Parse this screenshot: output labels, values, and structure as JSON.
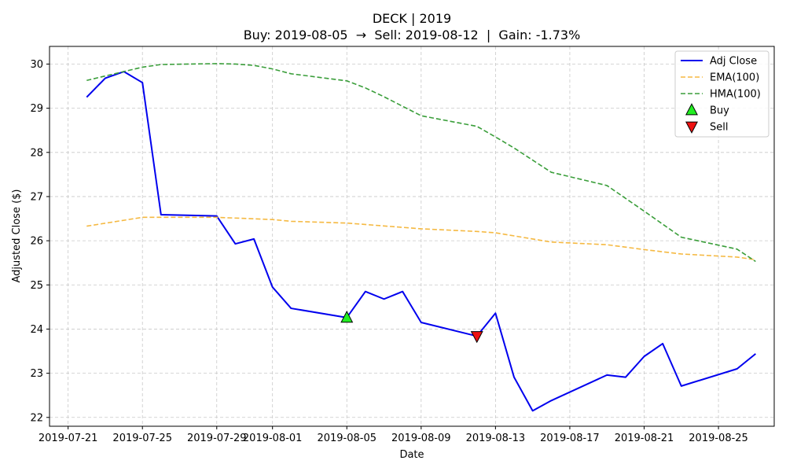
{
  "chart_data": {
    "type": "line",
    "title_line1": "DECK | 2019",
    "title_line2": "Buy: 2019-08-05  →  Sell: 2019-08-12  |  Gain: -1.73%",
    "xlabel": "Date",
    "ylabel": "Adjusted Close ($)",
    "grid": true,
    "legend_position": "top-right",
    "xlim": [
      "2019-07-20",
      "2019-08-28"
    ],
    "ylim": [
      21.8,
      30.4
    ],
    "x_ticks": [
      "2019-07-21",
      "2019-07-25",
      "2019-07-29",
      "2019-08-01",
      "2019-08-05",
      "2019-08-09",
      "2019-08-13",
      "2019-08-17",
      "2019-08-21",
      "2019-08-25"
    ],
    "y_ticks": [
      22,
      23,
      24,
      25,
      26,
      27,
      28,
      29,
      30
    ],
    "series": [
      {
        "name": "Adj Close",
        "color": "#0000ee",
        "style": "solid",
        "points": [
          {
            "x": "2019-07-22",
            "y": 29.25
          },
          {
            "x": "2019-07-23",
            "y": 29.68
          },
          {
            "x": "2019-07-24",
            "y": 29.83
          },
          {
            "x": "2019-07-25",
            "y": 29.58
          },
          {
            "x": "2019-07-26",
            "y": 26.59
          },
          {
            "x": "2019-07-29",
            "y": 26.56
          },
          {
            "x": "2019-07-30",
            "y": 25.93
          },
          {
            "x": "2019-07-31",
            "y": 26.04
          },
          {
            "x": "2019-08-01",
            "y": 24.95
          },
          {
            "x": "2019-08-02",
            "y": 24.47
          },
          {
            "x": "2019-08-05",
            "y": 24.26
          },
          {
            "x": "2019-08-06",
            "y": 24.85
          },
          {
            "x": "2019-08-07",
            "y": 24.68
          },
          {
            "x": "2019-08-08",
            "y": 24.85
          },
          {
            "x": "2019-08-09",
            "y": 24.15
          },
          {
            "x": "2019-08-12",
            "y": 23.84
          },
          {
            "x": "2019-08-13",
            "y": 24.36
          },
          {
            "x": "2019-08-14",
            "y": 22.91
          },
          {
            "x": "2019-08-15",
            "y": 22.15
          },
          {
            "x": "2019-08-16",
            "y": 22.38
          },
          {
            "x": "2019-08-19",
            "y": 22.96
          },
          {
            "x": "2019-08-20",
            "y": 22.91
          },
          {
            "x": "2019-08-21",
            "y": 23.38
          },
          {
            "x": "2019-08-22",
            "y": 23.67
          },
          {
            "x": "2019-08-23",
            "y": 22.71
          },
          {
            "x": "2019-08-26",
            "y": 23.1
          },
          {
            "x": "2019-08-27",
            "y": 23.44
          }
        ]
      },
      {
        "name": "EMA(100)",
        "color": "#f5b942",
        "style": "dashed",
        "points": [
          {
            "x": "2019-07-22",
            "y": 26.33
          },
          {
            "x": "2019-07-25",
            "y": 26.53
          },
          {
            "x": "2019-07-29",
            "y": 26.53
          },
          {
            "x": "2019-08-01",
            "y": 26.48
          },
          {
            "x": "2019-08-02",
            "y": 26.44
          },
          {
            "x": "2019-08-05",
            "y": 26.4
          },
          {
            "x": "2019-08-09",
            "y": 26.27
          },
          {
            "x": "2019-08-12",
            "y": 26.21
          },
          {
            "x": "2019-08-13",
            "y": 26.18
          },
          {
            "x": "2019-08-16",
            "y": 25.97
          },
          {
            "x": "2019-08-19",
            "y": 25.91
          },
          {
            "x": "2019-08-21",
            "y": 25.8
          },
          {
            "x": "2019-08-23",
            "y": 25.7
          },
          {
            "x": "2019-08-26",
            "y": 25.63
          },
          {
            "x": "2019-08-27",
            "y": 25.57
          }
        ]
      },
      {
        "name": "HMA(100)",
        "color": "#3a9e3a",
        "style": "dashed",
        "points": [
          {
            "x": "2019-07-22",
            "y": 29.63
          },
          {
            "x": "2019-07-24",
            "y": 29.83
          },
          {
            "x": "2019-07-25",
            "y": 29.93
          },
          {
            "x": "2019-07-26",
            "y": 29.99
          },
          {
            "x": "2019-07-29",
            "y": 30.01
          },
          {
            "x": "2019-07-30",
            "y": 30.0
          },
          {
            "x": "2019-07-31",
            "y": 29.97
          },
          {
            "x": "2019-08-01",
            "y": 29.89
          },
          {
            "x": "2019-08-02",
            "y": 29.78
          },
          {
            "x": "2019-08-05",
            "y": 29.62
          },
          {
            "x": "2019-08-06",
            "y": 29.46
          },
          {
            "x": "2019-08-07",
            "y": 29.26
          },
          {
            "x": "2019-08-09",
            "y": 28.83
          },
          {
            "x": "2019-08-12",
            "y": 28.59
          },
          {
            "x": "2019-08-13",
            "y": 28.35
          },
          {
            "x": "2019-08-14",
            "y": 28.1
          },
          {
            "x": "2019-08-16",
            "y": 27.55
          },
          {
            "x": "2019-08-19",
            "y": 27.25
          },
          {
            "x": "2019-08-21",
            "y": 26.67
          },
          {
            "x": "2019-08-23",
            "y": 26.08
          },
          {
            "x": "2019-08-26",
            "y": 25.81
          },
          {
            "x": "2019-08-27",
            "y": 25.53
          }
        ]
      }
    ],
    "markers": [
      {
        "name": "Buy",
        "x": "2019-08-05",
        "y": 24.26,
        "shape": "triangle-up",
        "color": "#22ee22"
      },
      {
        "name": "Sell",
        "x": "2019-08-12",
        "y": 23.84,
        "shape": "triangle-down",
        "color": "#ee1111"
      }
    ]
  }
}
